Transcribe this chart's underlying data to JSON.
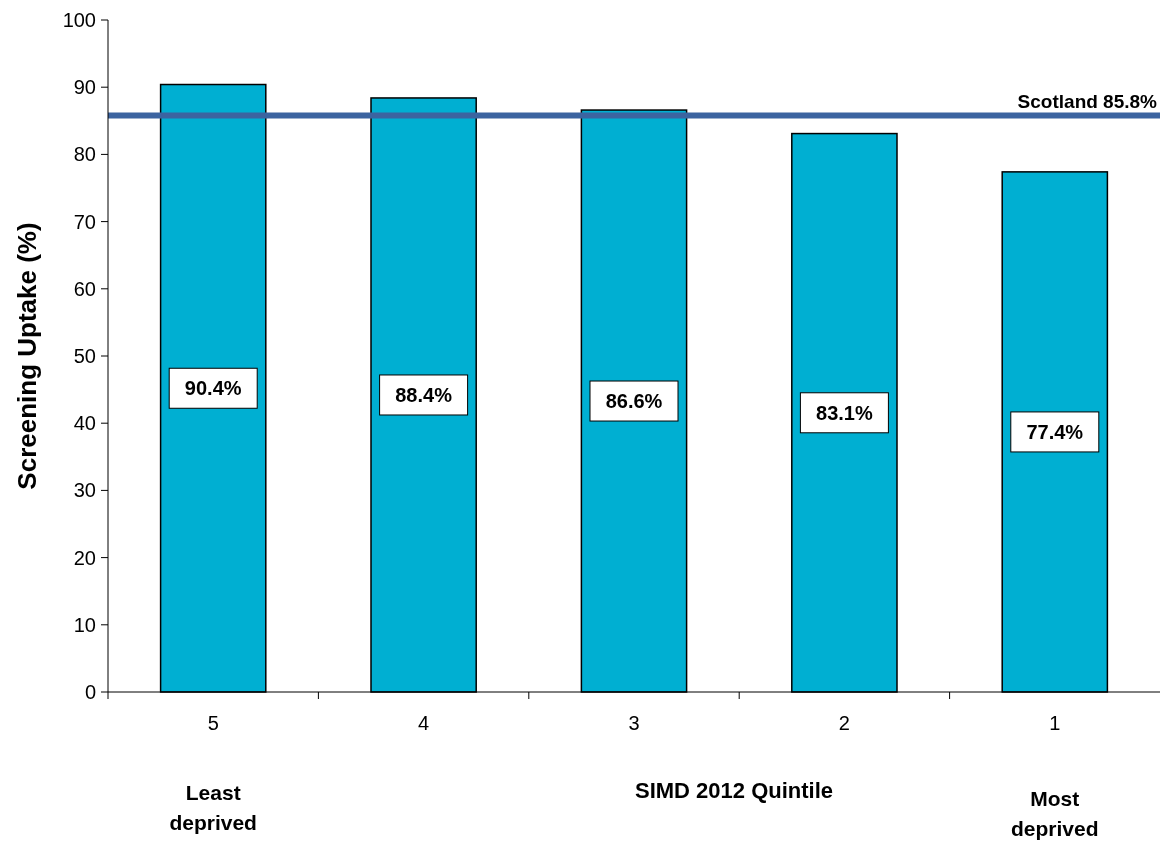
{
  "chart_data": {
    "type": "bar",
    "xlabel": "SIMD 2012 Quintile",
    "ylabel": "Screening Uptake (%)",
    "categories": [
      "5",
      "4",
      "3",
      "2",
      "1"
    ],
    "values": [
      90.4,
      88.4,
      86.6,
      83.1,
      77.4
    ],
    "value_labels": [
      "90.4%",
      "88.4%",
      "86.6%",
      "83.1%",
      "77.4%"
    ],
    "color": "#00afd2",
    "ylim": [
      0,
      100
    ],
    "yticks": [
      0,
      10,
      20,
      30,
      40,
      50,
      60,
      70,
      80,
      90,
      100
    ],
    "ref_lines": [
      {
        "axis": "y",
        "value": 85.8,
        "label": "Scotland 85.8%",
        "color": "#3c64a0"
      }
    ],
    "annotations": [
      "Least deprived",
      "Most deprived"
    ],
    "grid": false
  }
}
